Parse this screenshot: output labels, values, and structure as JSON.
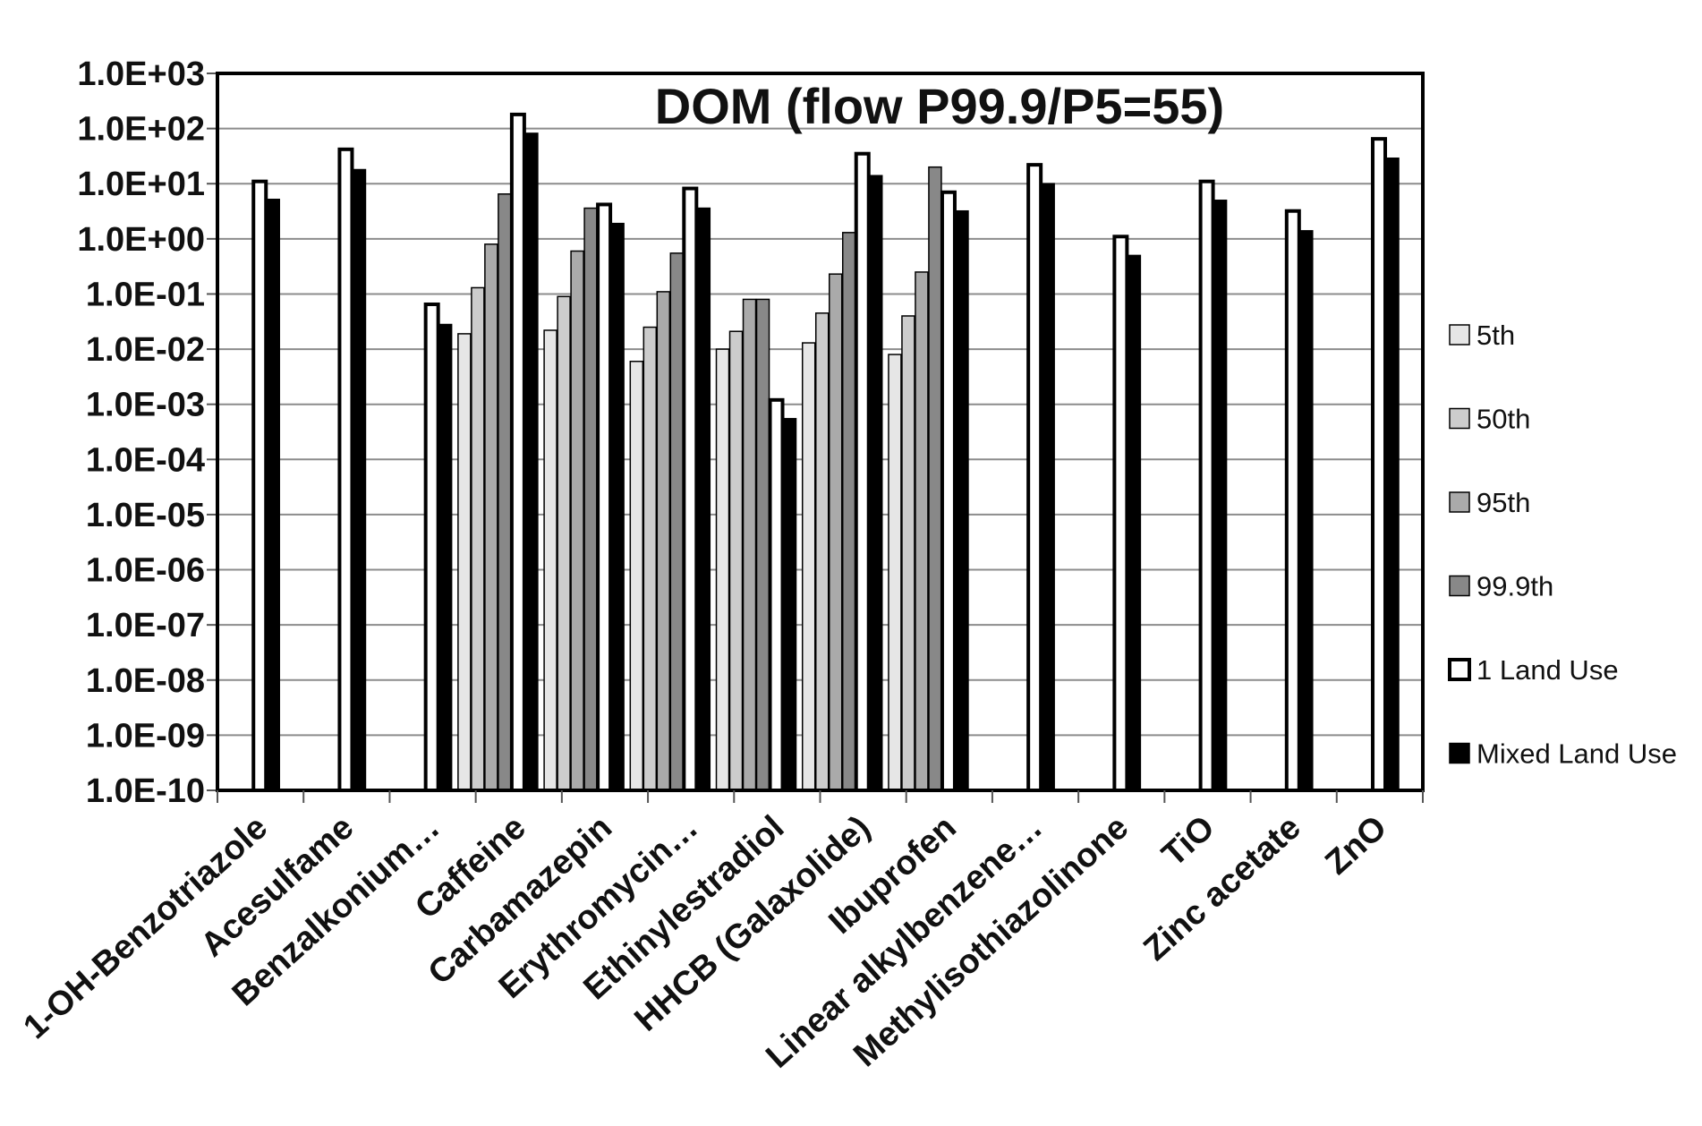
{
  "chart_data": {
    "type": "bar",
    "title": "DOM (flow P99.9/P5=55)",
    "xlabel": "",
    "ylabel": "",
    "y_scale": "log",
    "ylim": [
      1e-10,
      1000
    ],
    "y_ticks": [
      "1.0E-10",
      "1.0E-09",
      "1.0E-08",
      "1.0E-07",
      "1.0E-06",
      "1.0E-05",
      "1.0E-04",
      "1.0E-03",
      "1.0E-02",
      "1.0E-01",
      "1.0E+00",
      "1.0E+01",
      "1.0E+02",
      "1.0E+03"
    ],
    "grid": true,
    "legend_position": "right",
    "categories": [
      "1-OH-Benzotriazole",
      "Acesulfame",
      "Benzalkonium…",
      "Caffeine",
      "Carbamazepin",
      "Erythromycin…",
      "Ethinylestradiol",
      "HHCB (Galaxolide)",
      "Ibuprofen",
      "Linear alkylbenzene…",
      "Methylisothiazolinone",
      "TiO",
      "Zinc acetate",
      "ZnO"
    ],
    "series": [
      {
        "name": "5th",
        "color": "#e6e6e6",
        "values": [
          null,
          null,
          null,
          0.019,
          0.022,
          0.006,
          0.01,
          0.013,
          0.008,
          null,
          null,
          null,
          null,
          null
        ]
      },
      {
        "name": "50th",
        "color": "#cccccc",
        "values": [
          null,
          null,
          null,
          0.13,
          0.09,
          0.025,
          0.021,
          0.045,
          0.04,
          null,
          null,
          null,
          null,
          null
        ]
      },
      {
        "name": "95th",
        "color": "#aaaaaa",
        "values": [
          null,
          null,
          null,
          0.8,
          0.6,
          0.11,
          0.08,
          0.23,
          0.25,
          null,
          null,
          null,
          null,
          null
        ]
      },
      {
        "name": "99.9th",
        "color": "#888888",
        "values": [
          null,
          null,
          null,
          6.5,
          3.6,
          0.55,
          0.08,
          1.3,
          20,
          null,
          null,
          null,
          null,
          null
        ]
      },
      {
        "name": "1 Land Use",
        "color": "#ffffff",
        "values": [
          11,
          42,
          0.065,
          180,
          4.2,
          8.2,
          0.0012,
          35,
          7,
          22,
          1.1,
          11,
          3.2,
          65
        ]
      },
      {
        "name": "Mixed Land Use",
        "color": "#000000",
        "values": [
          5.2,
          18,
          0.028,
          82,
          1.9,
          3.6,
          0.00055,
          14,
          3.2,
          10,
          0.5,
          5,
          1.4,
          29
        ]
      }
    ]
  }
}
